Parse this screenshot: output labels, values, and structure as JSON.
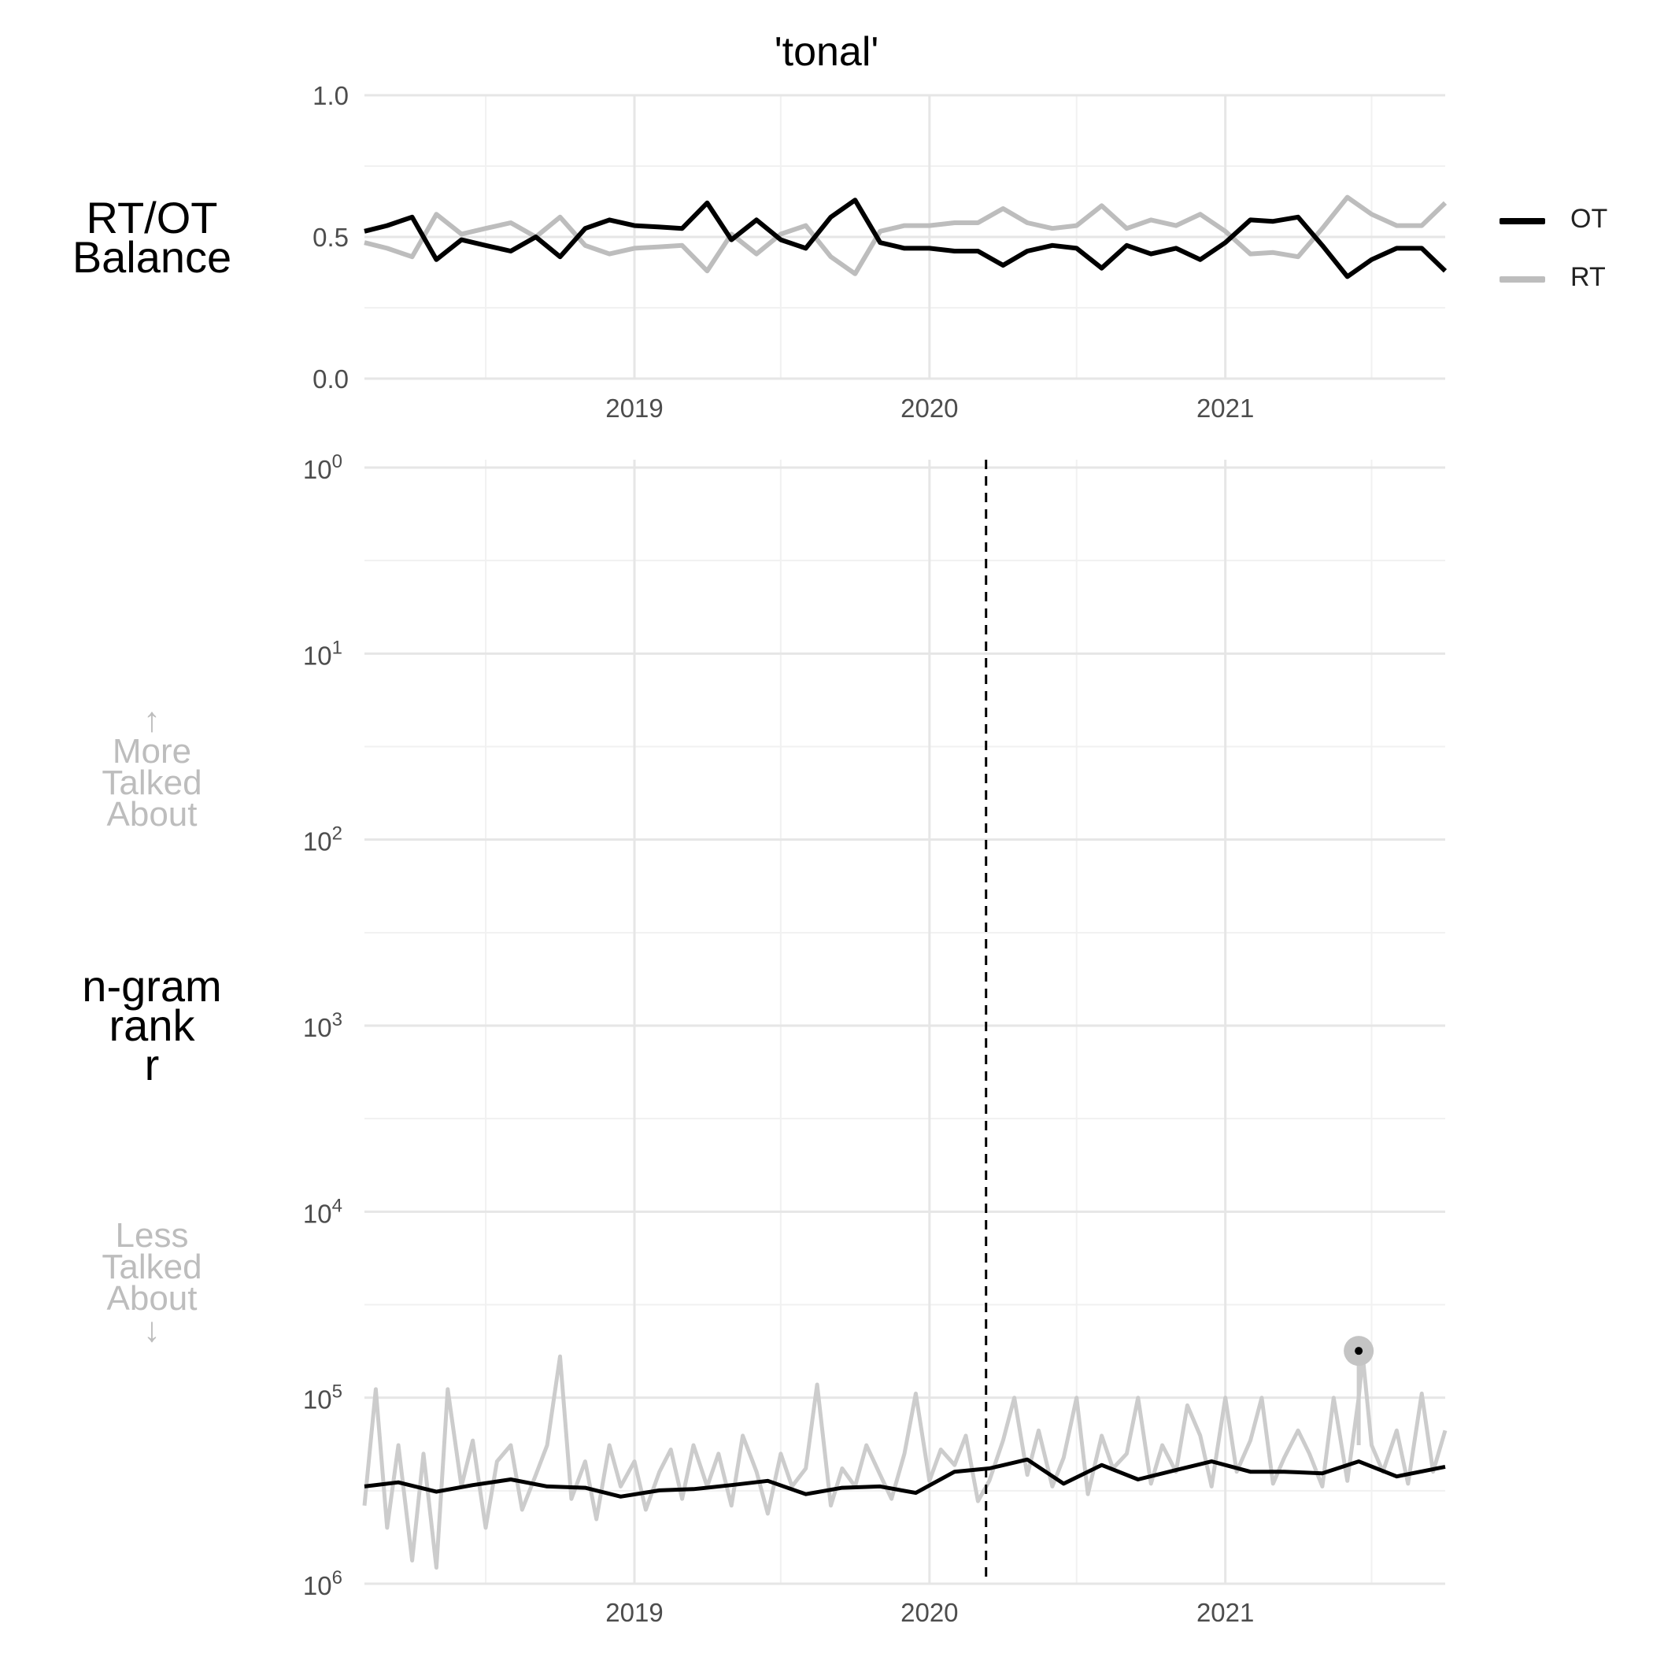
{
  "chart_data": [
    {
      "type": "line",
      "panel": "balance",
      "title": "'tonal'",
      "ylabel_lines": [
        "RT/OT",
        "Balance"
      ],
      "ylim": [
        0.0,
        1.0
      ],
      "y_ticks": [
        "1.0",
        "0.5",
        "0.0"
      ],
      "y_tick_values": [
        1.0,
        0.5,
        0.0
      ],
      "x_tick_labels": [
        "2019",
        "2020",
        "2021"
      ],
      "x_tick_dates": [
        "2019-01-01",
        "2020-01-01",
        "2021-01-01"
      ],
      "xlim": [
        "2018-02-01",
        "2021-09-30"
      ],
      "x_dates": [
        "2018-02-01",
        "2018-03-01",
        "2018-04-01",
        "2018-05-01",
        "2018-06-01",
        "2018-07-01",
        "2018-08-01",
        "2018-09-01",
        "2018-10-01",
        "2018-11-01",
        "2018-12-01",
        "2019-01-01",
        "2019-02-01",
        "2019-03-01",
        "2019-04-01",
        "2019-05-01",
        "2019-06-01",
        "2019-07-01",
        "2019-08-01",
        "2019-09-01",
        "2019-10-01",
        "2019-11-01",
        "2019-12-01",
        "2020-01-01",
        "2020-02-01",
        "2020-03-01",
        "2020-04-01",
        "2020-05-01",
        "2020-06-01",
        "2020-07-01",
        "2020-08-01",
        "2020-09-01",
        "2020-10-01",
        "2020-11-01",
        "2020-12-01",
        "2021-01-01",
        "2021-02-01",
        "2021-03-01",
        "2021-04-01",
        "2021-05-01",
        "2021-06-01",
        "2021-07-01",
        "2021-08-01",
        "2021-09-01",
        "2021-09-30"
      ],
      "series": [
        {
          "name": "OT",
          "color": "#000000",
          "values": [
            0.52,
            0.54,
            0.57,
            0.42,
            0.49,
            0.47,
            0.45,
            0.5,
            0.43,
            0.53,
            0.56,
            0.54,
            0.535,
            0.53,
            0.62,
            0.49,
            0.56,
            0.49,
            0.46,
            0.57,
            0.63,
            0.48,
            0.46,
            0.46,
            0.45,
            0.45,
            0.4,
            0.45,
            0.47,
            0.46,
            0.39,
            0.47,
            0.44,
            0.46,
            0.42,
            0.48,
            0.56,
            0.555,
            0.57,
            0.47,
            0.36,
            0.42,
            0.46,
            0.46,
            0.38
          ]
        },
        {
          "name": "RT",
          "color": "#bdbdbd",
          "values": [
            0.48,
            0.46,
            0.43,
            0.58,
            0.51,
            0.53,
            0.55,
            0.5,
            0.57,
            0.47,
            0.44,
            0.46,
            0.465,
            0.47,
            0.38,
            0.51,
            0.44,
            0.51,
            0.54,
            0.43,
            0.37,
            0.52,
            0.54,
            0.54,
            0.55,
            0.55,
            0.6,
            0.55,
            0.53,
            0.54,
            0.61,
            0.53,
            0.56,
            0.54,
            0.58,
            0.52,
            0.44,
            0.445,
            0.43,
            0.53,
            0.64,
            0.58,
            0.54,
            0.54,
            0.62
          ]
        }
      ],
      "legend_position": "right",
      "grid": true
    },
    {
      "type": "line",
      "panel": "rank",
      "ylabel_lines": [
        "n-gram",
        "rank",
        "r"
      ],
      "y_scale": "log",
      "y_reversed": true,
      "ylim": [
        1,
        1000000
      ],
      "y_tick_bases": [
        "10",
        "10",
        "10",
        "10",
        "10",
        "10",
        "10"
      ],
      "y_tick_exponents": [
        "0",
        "1",
        "2",
        "3",
        "4",
        "5",
        "6"
      ],
      "upper_hint": [
        "↑",
        "More",
        "Talked",
        "About"
      ],
      "lower_hint": [
        "Less",
        "Talked",
        "About",
        "↓"
      ],
      "x_tick_labels": [
        "2019",
        "2020",
        "2021"
      ],
      "x_tick_dates": [
        "2019-01-01",
        "2020-01-01",
        "2021-01-01"
      ],
      "xlim": [
        "2018-02-01",
        "2021-09-30"
      ],
      "reference_line": {
        "date": "2020-03-11",
        "style": "dashed"
      },
      "highlight_point": {
        "date": "2021-06-15",
        "rank": 56000
      },
      "series": [
        {
          "name": "OT",
          "color": "#000000",
          "x_dates": [
            "2018-02-01",
            "2018-03-15",
            "2018-05-01",
            "2018-06-15",
            "2018-08-01",
            "2018-09-15",
            "2018-11-01",
            "2018-12-15",
            "2019-02-01",
            "2019-03-15",
            "2019-05-01",
            "2019-06-15",
            "2019-08-01",
            "2019-09-15",
            "2019-11-01",
            "2019-12-15",
            "2020-02-01",
            "2020-03-15",
            "2020-05-01",
            "2020-06-15",
            "2020-08-01",
            "2020-09-15",
            "2020-11-01",
            "2020-12-15",
            "2021-02-01",
            "2021-03-15",
            "2021-05-01",
            "2021-06-15",
            "2021-08-01",
            "2021-09-30"
          ],
          "values": [
            300000,
            285000,
            320000,
            295000,
            275000,
            300000,
            305000,
            340000,
            315000,
            310000,
            295000,
            280000,
            330000,
            305000,
            300000,
            325000,
            250000,
            240000,
            215000,
            290000,
            230000,
            275000,
            245000,
            220000,
            250000,
            250000,
            255000,
            220000,
            265000,
            235000
          ]
        },
        {
          "name": "RT",
          "color": "#cccccc",
          "x_dates": [
            "2018-02-01",
            "2018-02-15",
            "2018-03-01",
            "2018-03-15",
            "2018-04-01",
            "2018-04-15",
            "2018-05-01",
            "2018-05-15",
            "2018-06-01",
            "2018-06-15",
            "2018-07-01",
            "2018-07-15",
            "2018-08-01",
            "2018-08-15",
            "2018-09-01",
            "2018-09-15",
            "2018-10-01",
            "2018-10-15",
            "2018-11-01",
            "2018-11-15",
            "2018-12-01",
            "2018-12-15",
            "2019-01-01",
            "2019-01-15",
            "2019-02-01",
            "2019-02-15",
            "2019-03-01",
            "2019-03-15",
            "2019-04-01",
            "2019-04-15",
            "2019-05-01",
            "2019-05-15",
            "2019-06-01",
            "2019-06-15",
            "2019-07-01",
            "2019-07-15",
            "2019-08-01",
            "2019-08-15",
            "2019-09-01",
            "2019-09-15",
            "2019-10-01",
            "2019-10-15",
            "2019-11-01",
            "2019-11-15",
            "2019-12-01",
            "2019-12-15",
            "2020-01-01",
            "2020-01-15",
            "2020-02-01",
            "2020-02-15",
            "2020-03-01",
            "2020-03-15",
            "2020-04-01",
            "2020-04-15",
            "2020-05-01",
            "2020-05-15",
            "2020-06-01",
            "2020-06-15",
            "2020-07-01",
            "2020-07-15",
            "2020-08-01",
            "2020-08-15",
            "2020-09-01",
            "2020-09-15",
            "2020-10-01",
            "2020-10-15",
            "2020-11-01",
            "2020-11-15",
            "2020-12-01",
            "2020-12-15",
            "2021-01-01",
            "2021-01-15",
            "2021-02-01",
            "2021-02-15",
            "2021-03-01",
            "2021-03-15",
            "2021-04-01",
            "2021-04-15",
            "2021-05-01",
            "2021-05-15",
            "2021-06-01",
            "2021-06-15",
            "2021-06-20",
            "2021-07-01",
            "2021-07-15",
            "2021-08-01",
            "2021-08-15",
            "2021-09-01",
            "2021-09-15",
            "2021-09-30"
          ],
          "values": [
            380000,
            90000,
            500000,
            180000,
            750000,
            200000,
            820000,
            90000,
            300000,
            170000,
            500000,
            220000,
            180000,
            400000,
            260000,
            180000,
            60000,
            350000,
            220000,
            450000,
            180000,
            300000,
            220000,
            400000,
            250000,
            190000,
            350000,
            180000,
            300000,
            200000,
            380000,
            160000,
            250000,
            420000,
            200000,
            300000,
            240000,
            85000,
            380000,
            240000,
            300000,
            180000,
            260000,
            350000,
            200000,
            95000,
            280000,
            190000,
            230000,
            160000,
            360000,
            280000,
            170000,
            100000,
            260000,
            150000,
            300000,
            210000,
            100000,
            330000,
            160000,
            240000,
            200000,
            100000,
            290000,
            180000,
            250000,
            110000,
            160000,
            300000,
            100000,
            250000,
            170000,
            100000,
            290000,
            210000,
            150000,
            200000,
            300000,
            100000,
            280000,
            100000,
            60000,
            180000,
            250000,
            150000,
            290000,
            95000,
            250000,
            150000
          ]
        }
      ],
      "grid": true
    }
  ]
}
